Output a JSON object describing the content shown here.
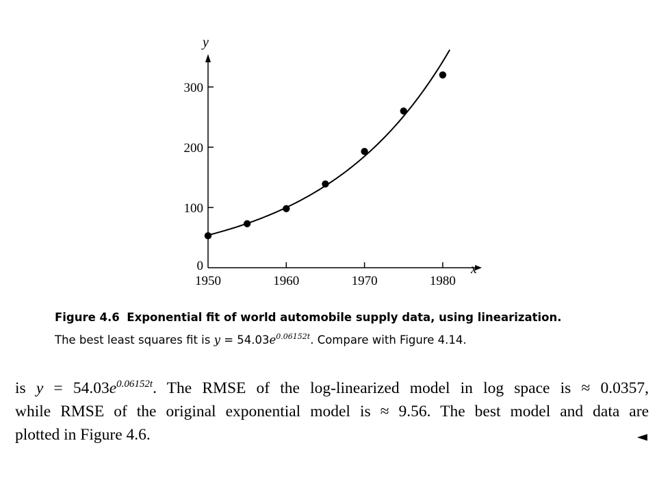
{
  "chart_data": {
    "type": "scatter",
    "title": "",
    "xlabel": "x",
    "ylabel": "y",
    "xlim": [
      1950,
      1985
    ],
    "ylim": [
      0,
      350
    ],
    "x_ticks": [
      "1950",
      "1960",
      "1970",
      "1980"
    ],
    "y_ticks": [
      "0",
      "100",
      "200",
      "300"
    ],
    "points": [
      {
        "x": 1950,
        "y": 53
      },
      {
        "x": 1955,
        "y": 73
      },
      {
        "x": 1960,
        "y": 98
      },
      {
        "x": 1965,
        "y": 139
      },
      {
        "x": 1970,
        "y": 193
      },
      {
        "x": 1975,
        "y": 260
      },
      {
        "x": 1980,
        "y": 320
      }
    ],
    "fit": {
      "type": "exponential",
      "a": 54.03,
      "k": 0.06152,
      "x0": 1950,
      "x_end": 1980.9
    }
  },
  "caption": {
    "label": "Figure 4.6",
    "title": "Exponential fit of world automobile supply data, using linearization.",
    "line2_pre": "The best least squares fit is ",
    "var_y": "y",
    "equals": " = 54.03",
    "e": "e",
    "exponent": "0.06152t",
    "line2_post": ". Compare with Figure 4.14."
  },
  "body": {
    "line1_pre": "is ",
    "var_y": "y",
    "equals": " = 54.03",
    "e": "e",
    "exponent": "0.06152t",
    "line1_post": ". The RMSE of the log-linearized model in log space is ≈ 0.0357,",
    "line2": "while RMSE of the original exponential model is ≈ 9.56. The best model and data are",
    "line3": "plotted in Figure 4.6.",
    "end_mark": "◄"
  }
}
